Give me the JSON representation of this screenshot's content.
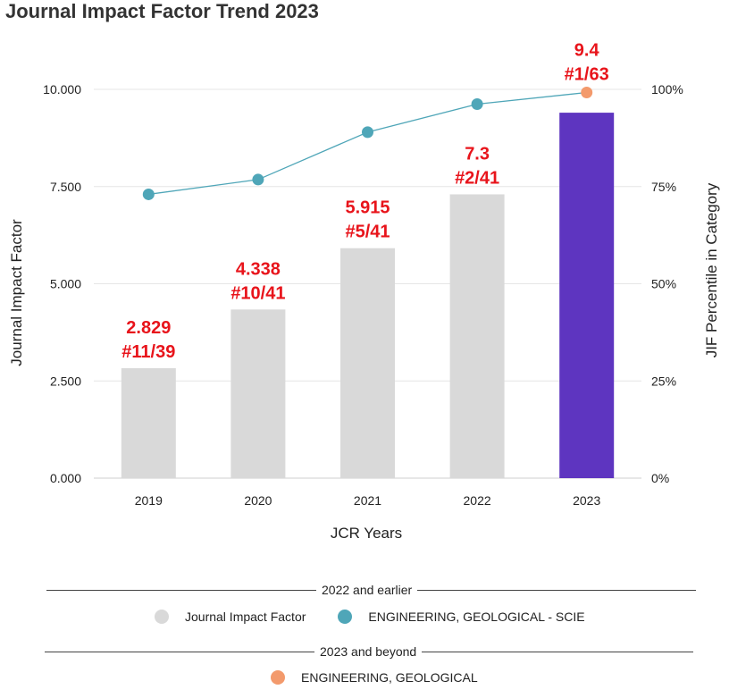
{
  "chart_data": {
    "type": "bar",
    "title": "Journal Impact Factor Trend 2023",
    "xlabel": "JCR Years",
    "ylabel": "Journal Impact Factor",
    "y2label": "JIF Percentile in Category",
    "categories": [
      "2019",
      "2020",
      "2021",
      "2022",
      "2023"
    ],
    "ylim": [
      0,
      10
    ],
    "y2lim": [
      0,
      100
    ],
    "yticks": [
      "0.000",
      "2.500",
      "5.000",
      "7.500",
      "10.000"
    ],
    "y2ticks": [
      "0%",
      "25%",
      "50%",
      "75%",
      "100%"
    ],
    "grid": true,
    "series": [
      {
        "name": "Journal Impact Factor",
        "type": "bar",
        "values": [
          2.829,
          4.338,
          5.915,
          7.3,
          9.4
        ],
        "value_labels": [
          "2.829",
          "4.338",
          "5.915",
          "7.3",
          "9.4"
        ],
        "rank_labels": [
          "#11/39",
          "#10/41",
          "#5/41",
          "#2/41",
          "#1/63"
        ],
        "colors": [
          "#d9d9d9",
          "#d9d9d9",
          "#d9d9d9",
          "#d9d9d9",
          "#5e35c0"
        ]
      },
      {
        "name": "ENGINEERING, GEOLOGICAL - SCIE",
        "type": "line",
        "axis": "right",
        "x": [
          "2019",
          "2020",
          "2021",
          "2022"
        ],
        "values": [
          73,
          76.8,
          89,
          96.2
        ],
        "color": "#4fa6b8"
      },
      {
        "name": "ENGINEERING, GEOLOGICAL",
        "type": "point",
        "axis": "right",
        "x": [
          "2023"
        ],
        "values": [
          99.2
        ],
        "color": "#f39a6c"
      }
    ],
    "label_color": "#e8141b"
  },
  "legend": {
    "group1_label": "2022 and earlier",
    "group1_items": [
      {
        "label": "Journal Impact Factor",
        "color": "#d9d9d9"
      },
      {
        "label": "ENGINEERING, GEOLOGICAL - SCIE",
        "color": "#4fa6b8"
      }
    ],
    "group2_label": "2023 and beyond",
    "group2_items": [
      {
        "label": "ENGINEERING, GEOLOGICAL",
        "color": "#f39a6c"
      }
    ]
  }
}
